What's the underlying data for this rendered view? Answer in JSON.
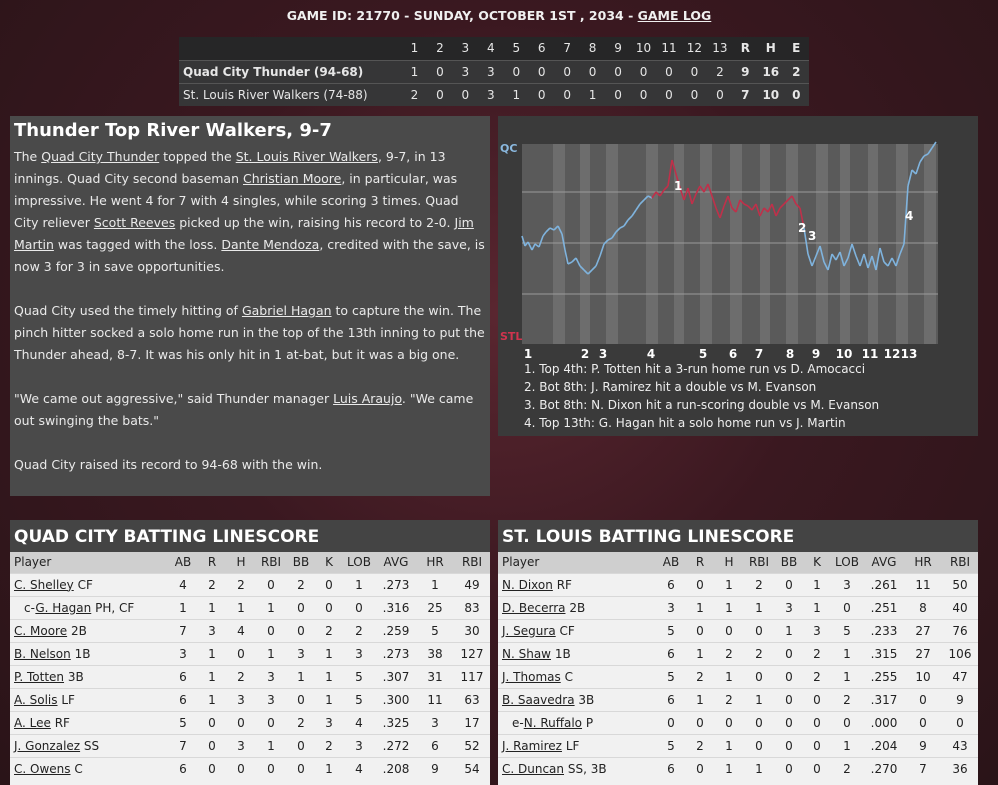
{
  "header": {
    "prefix": "GAME ID: 21770 - SUNDAY, OCTOBER 1ST , 2034 - ",
    "link": "GAME LOG"
  },
  "linescore": {
    "innings": [
      "1",
      "2",
      "3",
      "4",
      "5",
      "6",
      "7",
      "8",
      "9",
      "10",
      "11",
      "12",
      "13"
    ],
    "totals": [
      "R",
      "H",
      "E"
    ],
    "teams": [
      {
        "name": "Quad City Thunder (94-68)",
        "bold": true,
        "runs": [
          "1",
          "0",
          "3",
          "3",
          "0",
          "0",
          "0",
          "0",
          "0",
          "0",
          "0",
          "0",
          "2"
        ],
        "R": "9",
        "H": "16",
        "E": "2"
      },
      {
        "name": "St. Louis River Walkers (74-88)",
        "bold": false,
        "runs": [
          "2",
          "0",
          "0",
          "3",
          "1",
          "0",
          "0",
          "1",
          "0",
          "0",
          "0",
          "0",
          "0"
        ],
        "R": "7",
        "H": "10",
        "E": "0"
      }
    ]
  },
  "recap": {
    "title": "Thunder Top River Walkers, 9-7",
    "p1": [
      {
        "t": "The "
      },
      {
        "t": "Quad City Thunder",
        "u": true
      },
      {
        "t": " topped the "
      },
      {
        "t": "St. Louis River Walkers",
        "u": true
      },
      {
        "t": ", 9-7, in 13 innings. Quad City second baseman "
      },
      {
        "t": "Christian Moore",
        "u": true
      },
      {
        "t": ", in particular, was impressive. He went 4 for 7 with 4 singles, while scoring 3 times. Quad City reliever "
      },
      {
        "t": "Scott Reeves",
        "u": true
      },
      {
        "t": " picked up the win, raising his record to 2-0. "
      },
      {
        "t": "Jim Martin",
        "u": true
      },
      {
        "t": " was tagged with the loss. "
      },
      {
        "t": "Dante Mendoza",
        "u": true
      },
      {
        "t": ", credited with the save, is now 3 for 3 in save opportunities."
      }
    ],
    "p2": [
      {
        "t": "Quad City used the timely hitting of "
      },
      {
        "t": "Gabriel Hagan",
        "u": true
      },
      {
        "t": " to capture the win. The pinch hitter socked a solo home run in the top of the 13th inning to put the Thunder ahead, 8-7. It was his only hit in 1 at-bat, but it was a big one."
      }
    ],
    "p3": [
      {
        "t": "\"We came out aggressive,\" said Thunder manager "
      },
      {
        "t": "Luis Araujo",
        "u": true
      },
      {
        "t": ". \"We came out swinging the bats.\""
      }
    ],
    "p4": [
      {
        "t": "Quad City raised its record to 94-68 with the win."
      }
    ]
  },
  "win_prob": {
    "top_label": "QC",
    "bottom_label": "STL",
    "qc_color": "#7fb3dd",
    "stl_color": "#c0304a",
    "inning_labels": [
      "1",
      "2",
      "3",
      "4",
      "5",
      "6",
      "7",
      "8",
      "9",
      "10",
      "11",
      "12",
      "13"
    ],
    "markers": [
      "1",
      "2",
      "3",
      "4"
    ],
    "notes": [
      "1. Top 4th: P. Totten hit a 3-run home run vs D. Amocacci",
      "2. Bot 8th: J. Ramirez hit a double vs M. Evanson",
      "3. Bot 8th: N. Dixon hit a run-scoring double vs M. Evanson",
      "4. Top 13th: G. Hagan hit a solo home run vs J. Martin"
    ]
  },
  "batting_columns": [
    "Player",
    "AB",
    "R",
    "H",
    "RBI",
    "BB",
    "K",
    "LOB",
    "AVG",
    "HR",
    "RBI"
  ],
  "qc_batting": {
    "title": "QUAD CITY BATTING LINESCORE",
    "rows": [
      {
        "pre": "",
        "name": "C. Shelley",
        "pos": "CF",
        "s": [
          "4",
          "2",
          "2",
          "0",
          "2",
          "0",
          "1",
          ".273",
          "1",
          "49"
        ]
      },
      {
        "pre": "c-",
        "name": "G. Hagan",
        "pos": "PH, CF",
        "s": [
          "1",
          "1",
          "1",
          "1",
          "0",
          "0",
          "0",
          ".316",
          "25",
          "83"
        ]
      },
      {
        "pre": "",
        "name": "C. Moore",
        "pos": "2B",
        "s": [
          "7",
          "3",
          "4",
          "0",
          "0",
          "2",
          "2",
          ".259",
          "5",
          "30"
        ]
      },
      {
        "pre": "",
        "name": "B. Nelson",
        "pos": "1B",
        "s": [
          "3",
          "1",
          "0",
          "1",
          "3",
          "1",
          "3",
          ".273",
          "38",
          "127"
        ]
      },
      {
        "pre": "",
        "name": "P. Totten",
        "pos": "3B",
        "s": [
          "6",
          "1",
          "2",
          "3",
          "1",
          "1",
          "5",
          ".307",
          "31",
          "117"
        ]
      },
      {
        "pre": "",
        "name": "A. Solis",
        "pos": "LF",
        "s": [
          "6",
          "1",
          "3",
          "3",
          "0",
          "1",
          "5",
          ".300",
          "11",
          "63"
        ]
      },
      {
        "pre": "",
        "name": "A. Lee",
        "pos": "RF",
        "s": [
          "5",
          "0",
          "0",
          "0",
          "2",
          "3",
          "4",
          ".325",
          "3",
          "17"
        ]
      },
      {
        "pre": "",
        "name": "J. Gonzalez",
        "pos": "SS",
        "s": [
          "7",
          "0",
          "3",
          "1",
          "0",
          "2",
          "3",
          ".272",
          "6",
          "52"
        ]
      },
      {
        "pre": "",
        "name": "C. Owens",
        "pos": "C",
        "s": [
          "6",
          "0",
          "0",
          "0",
          "0",
          "1",
          "4",
          ".208",
          "9",
          "54"
        ]
      }
    ]
  },
  "stl_batting": {
    "title": "ST. LOUIS BATTING LINESCORE",
    "rows": [
      {
        "pre": "",
        "name": "N. Dixon",
        "pos": "RF",
        "s": [
          "6",
          "0",
          "1",
          "2",
          "0",
          "1",
          "3",
          ".261",
          "11",
          "50"
        ]
      },
      {
        "pre": "",
        "name": "D. Becerra",
        "pos": "2B",
        "s": [
          "3",
          "1",
          "1",
          "1",
          "3",
          "1",
          "0",
          ".251",
          "8",
          "40"
        ]
      },
      {
        "pre": "",
        "name": "J. Segura",
        "pos": "CF",
        "s": [
          "5",
          "0",
          "0",
          "0",
          "1",
          "3",
          "5",
          ".233",
          "27",
          "76"
        ]
      },
      {
        "pre": "",
        "name": "N. Shaw",
        "pos": "1B",
        "s": [
          "6",
          "1",
          "2",
          "2",
          "0",
          "2",
          "1",
          ".315",
          "27",
          "106"
        ]
      },
      {
        "pre": "",
        "name": "J. Thomas",
        "pos": "C",
        "s": [
          "5",
          "2",
          "1",
          "0",
          "0",
          "2",
          "1",
          ".255",
          "10",
          "47"
        ]
      },
      {
        "pre": "",
        "name": "B. Saavedra",
        "pos": "3B",
        "s": [
          "6",
          "1",
          "2",
          "1",
          "0",
          "0",
          "2",
          ".317",
          "0",
          "9"
        ]
      },
      {
        "pre": "e-",
        "name": "N. Ruffalo",
        "pos": "P",
        "s": [
          "0",
          "0",
          "0",
          "0",
          "0",
          "0",
          "0",
          ".000",
          "0",
          "0"
        ]
      },
      {
        "pre": "",
        "name": "J. Ramirez",
        "pos": "LF",
        "s": [
          "5",
          "2",
          "1",
          "0",
          "0",
          "0",
          "1",
          ".204",
          "9",
          "43"
        ]
      },
      {
        "pre": "",
        "name": "C. Duncan",
        "pos": "SS, 3B",
        "s": [
          "6",
          "0",
          "1",
          "1",
          "0",
          "0",
          "2",
          ".270",
          "7",
          "36"
        ]
      }
    ]
  }
}
